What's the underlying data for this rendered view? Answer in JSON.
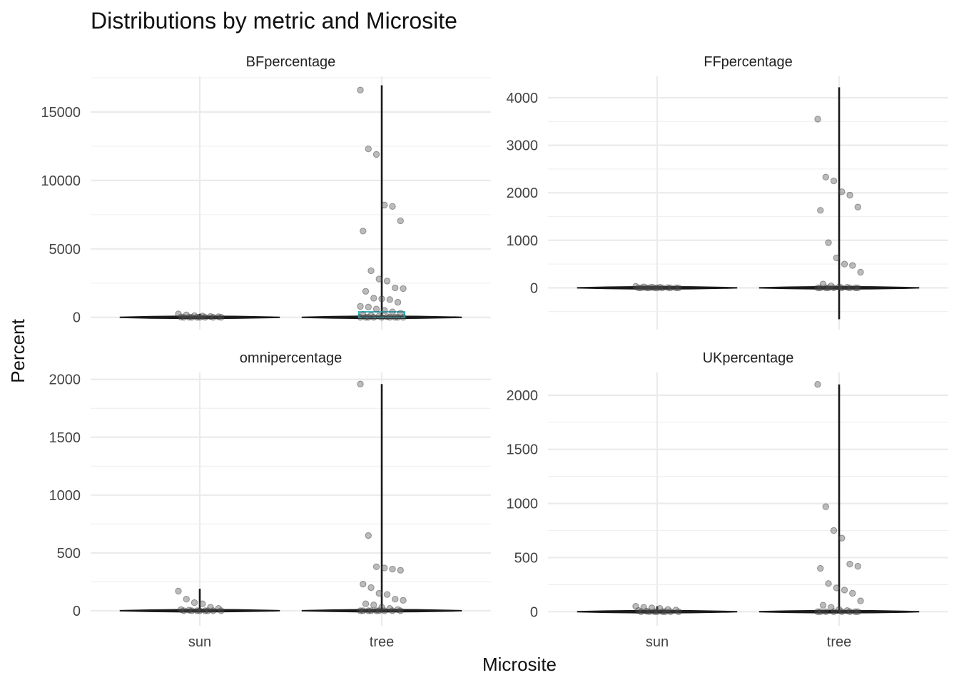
{
  "chart_data": {
    "type": "violin",
    "title": "Distributions by metric and Microsite",
    "xlabel": "Microsite",
    "ylabel": "Percent",
    "categories": [
      "sun",
      "tree"
    ],
    "grid": true,
    "legend": "none",
    "colors": {
      "grid": "#ebebeb",
      "violin": "#1a1a1a",
      "points": "#555555",
      "box_accent": "#2bb3c0"
    },
    "panels": [
      {
        "name": "BFpercentage",
        "ylim": [
          -900,
          17600
        ],
        "yticks": [
          0,
          5000,
          10000,
          15000
        ],
        "range": {
          "sun": [
            0,
            260
          ],
          "tree": [
            -90,
            16950
          ]
        },
        "points": {
          "sun": [
            250,
            180,
            120,
            90,
            60,
            40,
            20,
            10,
            5,
            0,
            0,
            0,
            0,
            0,
            0
          ],
          "tree": [
            16600,
            12300,
            11900,
            8200,
            8100,
            7050,
            6300,
            3400,
            2800,
            2650,
            2150,
            2100,
            1900,
            1400,
            1350,
            1300,
            1100,
            800,
            750,
            600,
            500,
            400,
            300,
            200,
            150,
            100,
            50,
            0,
            0,
            0,
            0,
            0,
            0,
            0,
            0,
            0
          ]
        }
      },
      {
        "name": "FFpercentage",
        "ylim": [
          -880,
          4450
        ],
        "yticks": [
          0,
          1000,
          2000,
          3000,
          4000
        ],
        "range": {
          "sun": [
            -10,
            40
          ],
          "tree": [
            -660,
            4220
          ]
        },
        "points": {
          "sun": [
            30,
            20,
            15,
            10,
            5,
            0,
            0,
            0,
            0,
            0,
            0,
            0,
            0,
            0,
            0
          ],
          "tree": [
            3550,
            2330,
            2250,
            2020,
            1950,
            1700,
            1630,
            950,
            630,
            500,
            470,
            330,
            80,
            40,
            20,
            10,
            0,
            0,
            0,
            0,
            0,
            0,
            0,
            0,
            0
          ]
        }
      },
      {
        "name": "omnipercentage",
        "ylim": [
          -130,
          2060
        ],
        "yticks": [
          0,
          500,
          1000,
          1500,
          2000
        ],
        "range": {
          "sun": [
            0,
            190
          ],
          "tree": [
            0,
            1960
          ]
        },
        "points": {
          "sun": [
            170,
            100,
            70,
            60,
            30,
            20,
            10,
            5,
            0,
            0,
            0,
            0,
            0,
            0,
            0,
            0
          ],
          "tree": [
            1960,
            650,
            380,
            370,
            360,
            350,
            230,
            200,
            150,
            140,
            100,
            90,
            60,
            50,
            30,
            20,
            10,
            0,
            0,
            0,
            0,
            0,
            0,
            0,
            0,
            0
          ]
        }
      },
      {
        "name": "UKpercentage",
        "ylim": [
          -130,
          2210
        ],
        "yticks": [
          0,
          500,
          1000,
          1500,
          2000
        ],
        "range": {
          "sun": [
            0,
            50
          ],
          "tree": [
            0,
            2100
          ]
        },
        "points": {
          "sun": [
            50,
            40,
            35,
            30,
            20,
            15,
            10,
            5,
            0,
            0,
            0,
            0,
            0,
            0,
            0,
            0
          ],
          "tree": [
            2100,
            970,
            750,
            680,
            440,
            420,
            400,
            260,
            220,
            200,
            170,
            100,
            60,
            40,
            20,
            10,
            0,
            0,
            0,
            0,
            0,
            0,
            0,
            0
          ]
        }
      }
    ]
  }
}
